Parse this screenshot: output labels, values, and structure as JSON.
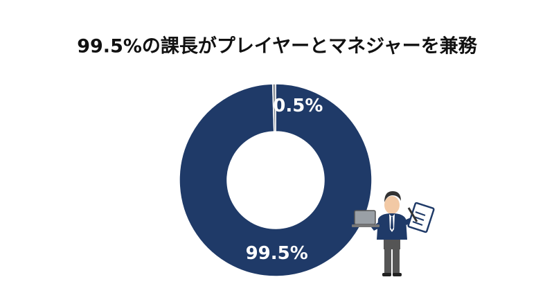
{
  "chart_data": {
    "type": "donut",
    "title": "99.5%の課長がプレイヤーとマネジャーを兼務",
    "values": [
      99.5,
      0.5
    ],
    "value_labels": [
      "99.5%",
      "0.5%"
    ],
    "colors": [
      "#1f3a68",
      "#8d9299"
    ]
  }
}
